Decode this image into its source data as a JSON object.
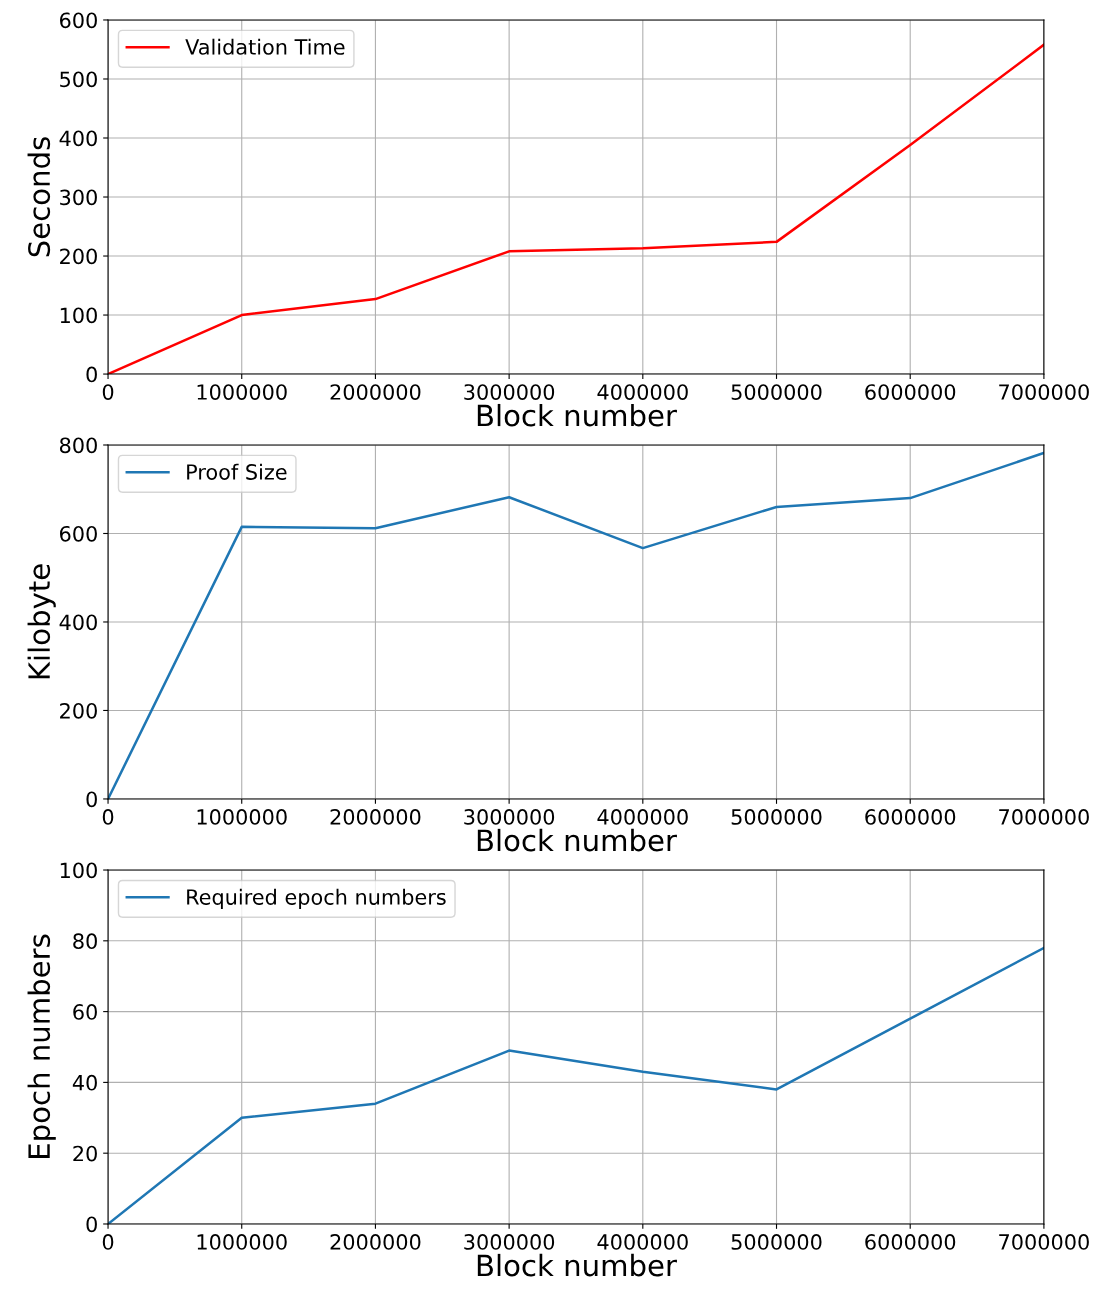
{
  "chart_data": [
    {
      "type": "line",
      "xlabel": "Block number",
      "ylabel": "Seconds",
      "x": [
        0,
        1000000,
        2000000,
        3000000,
        4000000,
        5000000,
        6000000,
        7000000
      ],
      "series": [
        {
          "name": "Validation Time",
          "color": "#ff0000",
          "values": [
            0,
            100,
            127,
            208,
            213,
            224,
            388,
            558
          ]
        }
      ],
      "xlim": [
        0,
        7000000
      ],
      "xticks": [
        0,
        1000000,
        2000000,
        3000000,
        4000000,
        5000000,
        6000000,
        7000000
      ],
      "ylim": [
        0,
        600
      ],
      "yticks": [
        0,
        100,
        200,
        300,
        400,
        500,
        600
      ],
      "grid": true,
      "legend": "top left"
    },
    {
      "type": "line",
      "xlabel": "Block number",
      "ylabel": "Kilobyte",
      "x": [
        0,
        1000000,
        2000000,
        3000000,
        4000000,
        5000000,
        6000000,
        7000000
      ],
      "series": [
        {
          "name": "Proof Size",
          "color": "#1f77b4",
          "values": [
            0,
            615,
            612,
            682,
            567,
            660,
            680,
            782
          ]
        }
      ],
      "xlim": [
        0,
        7000000
      ],
      "xticks": [
        0,
        1000000,
        2000000,
        3000000,
        4000000,
        5000000,
        6000000,
        7000000
      ],
      "ylim": [
        0,
        800
      ],
      "yticks": [
        0,
        200,
        400,
        600,
        800
      ],
      "grid": true,
      "legend": "top left"
    },
    {
      "type": "line",
      "xlabel": "Block number",
      "ylabel": "Epoch numbers",
      "x": [
        0,
        1000000,
        2000000,
        3000000,
        4000000,
        5000000,
        6000000,
        7000000
      ],
      "series": [
        {
          "name": "Required epoch numbers",
          "color": "#1f77b4",
          "values": [
            0,
            30,
            34,
            49,
            43,
            38,
            58,
            78
          ]
        }
      ],
      "xlim": [
        0,
        7000000
      ],
      "xticks": [
        0,
        1000000,
        2000000,
        3000000,
        4000000,
        5000000,
        6000000,
        7000000
      ],
      "ylim": [
        0,
        100
      ],
      "yticks": [
        0,
        20,
        40,
        60,
        80,
        100
      ],
      "grid": true,
      "legend": "top left"
    }
  ]
}
